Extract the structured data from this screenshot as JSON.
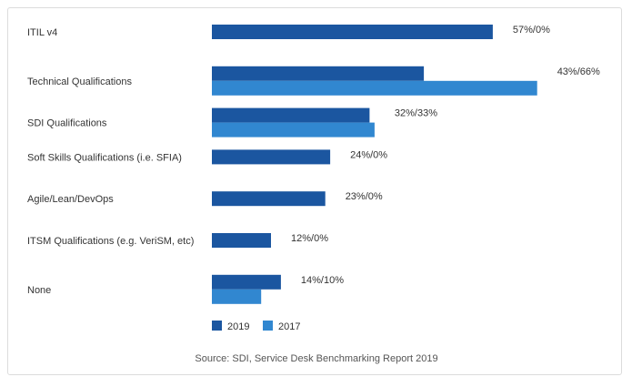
{
  "chart_data": {
    "type": "bar",
    "orientation": "horizontal",
    "categories": [
      "ITIL v4",
      "Technical Qualifications",
      "SDI Qualifications",
      "Soft Skills Qualifications (i.e. SFIA)",
      "Agile/Lean/DevOps",
      "ITSM Qualifications (e.g. VeriSM, etc)",
      "None"
    ],
    "series": [
      {
        "name": "2019",
        "color": "#1b56a0",
        "values": [
          57,
          43,
          32,
          24,
          23,
          12,
          14
        ]
      },
      {
        "name": "2017",
        "color": "#3187d0",
        "values": [
          0,
          66,
          33,
          0,
          0,
          0,
          10
        ]
      }
    ],
    "data_labels": [
      "57%/0%",
      "43%/66%",
      "32%/33%",
      "24%/0%",
      "23%/0%",
      "12%/0%",
      "14%/10%"
    ],
    "xlim": [
      0,
      100
    ],
    "grid": false,
    "legend": "bottom-center",
    "source": "Source: SDI, Service Desk Benchmarking Report 2019"
  }
}
